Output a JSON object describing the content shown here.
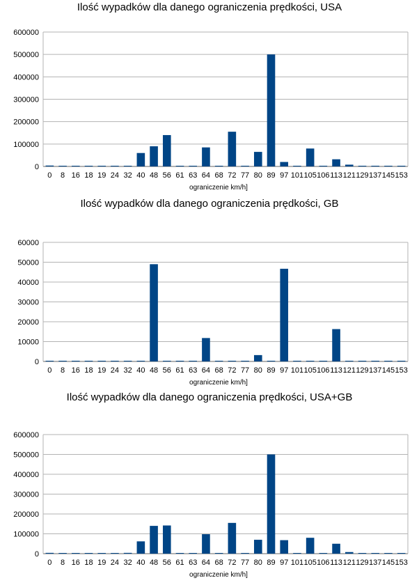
{
  "chart_data": [
    {
      "type": "bar",
      "title": "Ilość wypadków dla danego ograniczenia prędkości, USA",
      "xlabel": "ograniczenie km/h]",
      "ylabel": "",
      "ylim": [
        0,
        600000
      ],
      "yticks": [
        "0",
        "100000",
        "200000",
        "300000",
        "400000",
        "500000",
        "600000"
      ],
      "grid": true,
      "legend": "none",
      "bar_color": "#004586",
      "categories": [
        "0",
        "8",
        "16",
        "18",
        "19",
        "24",
        "32",
        "40",
        "48",
        "56",
        "61",
        "63",
        "64",
        "68",
        "72",
        "77",
        "80",
        "89",
        "97",
        "101",
        "105",
        "106",
        "113",
        "121",
        "129",
        "137",
        "145",
        "153"
      ],
      "values": [
        4000,
        1000,
        1500,
        500,
        1000,
        2000,
        3000,
        60000,
        90000,
        140000,
        500,
        500,
        85000,
        2000,
        155000,
        500,
        65000,
        500000,
        20000,
        500,
        80000,
        500,
        32000,
        8000,
        1000,
        1000,
        1000,
        1000
      ]
    },
    {
      "type": "bar",
      "title": "Ilość wypadków dla danego ograniczenia prędkości, GB",
      "xlabel": "ograniczenie km/h]",
      "ylabel": "",
      "ylim": [
        0,
        60000
      ],
      "yticks": [
        "0",
        "10000",
        "20000",
        "30000",
        "40000",
        "50000",
        "60000"
      ],
      "grid": true,
      "legend": "none",
      "bar_color": "#004586",
      "categories": [
        "0",
        "8",
        "16",
        "18",
        "19",
        "24",
        "32",
        "40",
        "48",
        "56",
        "61",
        "63",
        "64",
        "68",
        "72",
        "77",
        "80",
        "89",
        "97",
        "101",
        "105",
        "106",
        "113",
        "121",
        "129",
        "137",
        "145",
        "153"
      ],
      "values": [
        100,
        50,
        200,
        100,
        150,
        200,
        300,
        200,
        49000,
        100,
        200,
        50,
        11800,
        50,
        50,
        300,
        3200,
        50,
        46700,
        200,
        100,
        100,
        16300,
        50,
        50,
        50,
        50,
        50
      ]
    },
    {
      "type": "bar",
      "title": "Ilość wypadków dla danego ograniczenia prędkości, USA+GB",
      "xlabel": "ograniczenie km/h]",
      "ylabel": "",
      "ylim": [
        0,
        600000
      ],
      "yticks": [
        "0",
        "100000",
        "200000",
        "300000",
        "400000",
        "500000",
        "600000"
      ],
      "grid": true,
      "legend": "none",
      "bar_color": "#004586",
      "categories": [
        "0",
        "8",
        "16",
        "18",
        "19",
        "24",
        "32",
        "40",
        "48",
        "56",
        "61",
        "63",
        "64",
        "68",
        "72",
        "77",
        "80",
        "89",
        "97",
        "101",
        "105",
        "106",
        "113",
        "121",
        "129",
        "137",
        "145",
        "153"
      ],
      "values": [
        4000,
        1000,
        1500,
        500,
        1500,
        3000,
        4000,
        62000,
        140000,
        142000,
        500,
        500,
        98000,
        2000,
        155000,
        500,
        70000,
        500000,
        68000,
        500,
        80000,
        500,
        50000,
        8000,
        1000,
        1000,
        1000,
        1000
      ]
    }
  ]
}
